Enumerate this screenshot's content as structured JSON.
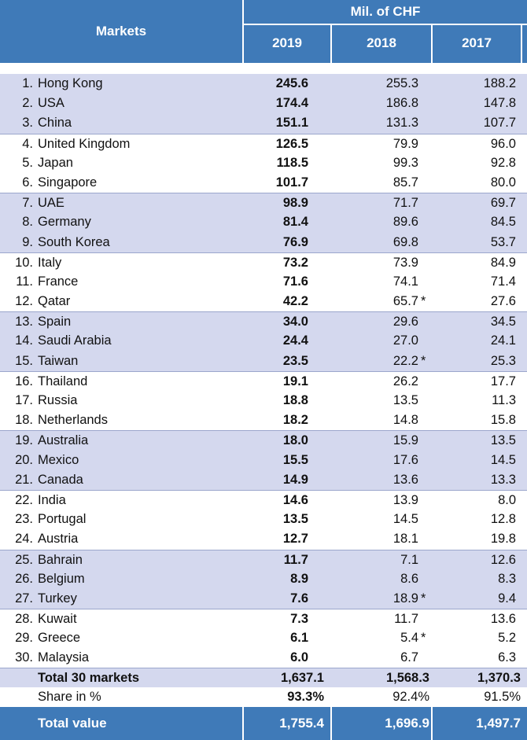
{
  "header": {
    "markets_label": "Markets",
    "unit_label": "Mil. of CHF",
    "years": [
      "2019",
      "2018",
      "2017"
    ]
  },
  "rows": [
    {
      "rank": "1.",
      "name": "Hong Kong",
      "v2019": "245.6",
      "v2018": "255.3",
      "v2017": "188.2",
      "note": ""
    },
    {
      "rank": "2.",
      "name": "USA",
      "v2019": "174.4",
      "v2018": "186.8",
      "v2017": "147.8",
      "note": ""
    },
    {
      "rank": "3.",
      "name": "China",
      "v2019": "151.1",
      "v2018": "131.3",
      "v2017": "107.7",
      "note": ""
    },
    {
      "rank": "4.",
      "name": "United Kingdom",
      "v2019": "126.5",
      "v2018": "79.9",
      "v2017": "96.0",
      "note": ""
    },
    {
      "rank": "5.",
      "name": "Japan",
      "v2019": "118.5",
      "v2018": "99.3",
      "v2017": "92.8",
      "note": ""
    },
    {
      "rank": "6.",
      "name": "Singapore",
      "v2019": "101.7",
      "v2018": "85.7",
      "v2017": "80.0",
      "note": ""
    },
    {
      "rank": "7.",
      "name": "UAE",
      "v2019": "98.9",
      "v2018": "71.7",
      "v2017": "69.7",
      "note": ""
    },
    {
      "rank": "8.",
      "name": "Germany",
      "v2019": "81.4",
      "v2018": "89.6",
      "v2017": "84.5",
      "note": ""
    },
    {
      "rank": "9.",
      "name": "South Korea",
      "v2019": "76.9",
      "v2018": "69.8",
      "v2017": "53.7",
      "note": ""
    },
    {
      "rank": "10.",
      "name": "Italy",
      "v2019": "73.2",
      "v2018": "73.9",
      "v2017": "84.9",
      "note": ""
    },
    {
      "rank": "11.",
      "name": "France",
      "v2019": "71.6",
      "v2018": "74.1",
      "v2017": "71.4",
      "note": ""
    },
    {
      "rank": "12.",
      "name": "Qatar",
      "v2019": "42.2",
      "v2018": "65.7",
      "v2017": "27.6",
      "note": "*"
    },
    {
      "rank": "13.",
      "name": "Spain",
      "v2019": "34.0",
      "v2018": "29.6",
      "v2017": "34.5",
      "note": ""
    },
    {
      "rank": "14.",
      "name": "Saudi Arabia",
      "v2019": "24.4",
      "v2018": "27.0",
      "v2017": "24.1",
      "note": ""
    },
    {
      "rank": "15.",
      "name": "Taiwan",
      "v2019": "23.5",
      "v2018": "22.2",
      "v2017": "25.3",
      "note": "*"
    },
    {
      "rank": "16.",
      "name": "Thailand",
      "v2019": "19.1",
      "v2018": "26.2",
      "v2017": "17.7",
      "note": ""
    },
    {
      "rank": "17.",
      "name": "Russia",
      "v2019": "18.8",
      "v2018": "13.5",
      "v2017": "11.3",
      "note": ""
    },
    {
      "rank": "18.",
      "name": "Netherlands",
      "v2019": "18.2",
      "v2018": "14.8",
      "v2017": "15.8",
      "note": ""
    },
    {
      "rank": "19.",
      "name": "Australia",
      "v2019": "18.0",
      "v2018": "15.9",
      "v2017": "13.5",
      "note": ""
    },
    {
      "rank": "20.",
      "name": "Mexico",
      "v2019": "15.5",
      "v2018": "17.6",
      "v2017": "14.5",
      "note": ""
    },
    {
      "rank": "21.",
      "name": "Canada",
      "v2019": "14.9",
      "v2018": "13.6",
      "v2017": "13.3",
      "note": ""
    },
    {
      "rank": "22.",
      "name": "India",
      "v2019": "14.6",
      "v2018": "13.9",
      "v2017": "8.0",
      "note": ""
    },
    {
      "rank": "23.",
      "name": "Portugal",
      "v2019": "13.5",
      "v2018": "14.5",
      "v2017": "12.8",
      "note": ""
    },
    {
      "rank": "24.",
      "name": "Austria",
      "v2019": "12.7",
      "v2018": "18.1",
      "v2017": "19.8",
      "note": ""
    },
    {
      "rank": "25.",
      "name": "Bahrain",
      "v2019": "11.7",
      "v2018": "7.1",
      "v2017": "12.6",
      "note": ""
    },
    {
      "rank": "26.",
      "name": "Belgium",
      "v2019": "8.9",
      "v2018": "8.6",
      "v2017": "8.3",
      "note": ""
    },
    {
      "rank": "27.",
      "name": "Turkey",
      "v2019": "7.6",
      "v2018": "18.9",
      "v2017": "9.4",
      "note": "*"
    },
    {
      "rank": "28.",
      "name": "Kuwait",
      "v2019": "7.3",
      "v2018": "11.7",
      "v2017": "13.6",
      "note": ""
    },
    {
      "rank": "29.",
      "name": "Greece",
      "v2019": "6.1",
      "v2018": "5.4",
      "v2017": "5.2",
      "note": "*"
    },
    {
      "rank": "30.",
      "name": "Malaysia",
      "v2019": "6.0",
      "v2018": "6.7",
      "v2017": "6.3",
      "note": ""
    }
  ],
  "totals": {
    "total30": {
      "label": "Total 30 markets",
      "v2019": "1,637.1",
      "v2018": "1,568.3",
      "v2017": "1,370.3"
    },
    "share": {
      "label": "Share in %",
      "v2019": "93.3%",
      "v2018": "92.4%",
      "v2017": "91.5%"
    },
    "total_value": {
      "label": "Total value",
      "v2019": "1,755.4",
      "v2018": "1,696.9",
      "v2017": "1,497.7"
    }
  },
  "colors": {
    "header_bg": "#3f7ab8",
    "band_bg": "#d4d8ee",
    "rule": "#9ba6cc"
  }
}
